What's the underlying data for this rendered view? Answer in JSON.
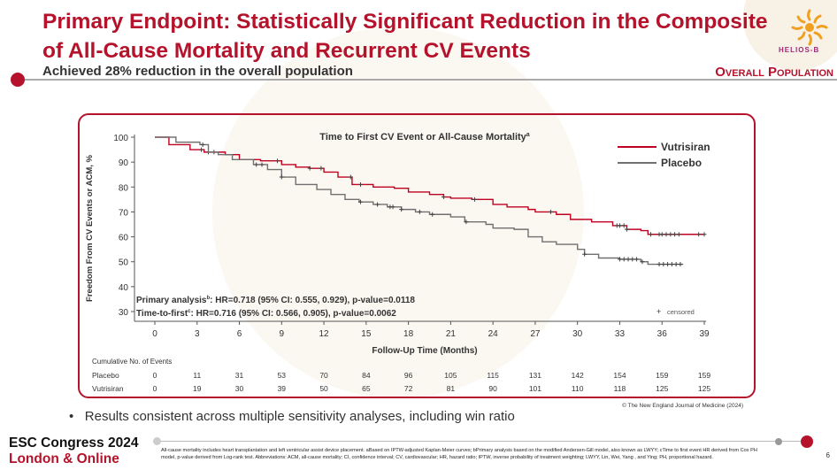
{
  "header": {
    "title": "Primary Endpoint: Statistically Significant Reduction in the Composite of All-Cause Mortality and Recurrent CV Events",
    "subtitle": "Achieved 28% reduction in the overall population",
    "population_label": "Overall Population",
    "logo_text": "HELIOS-B"
  },
  "colors": {
    "brand": "#b5122b",
    "vutrisiran": "#c00020",
    "placebo": "#707070"
  },
  "chart_data": {
    "type": "line",
    "subtype": "kaplan-meier",
    "title": "Time to First CV Event or All-Cause Mortality",
    "title_sup": "a",
    "xlabel": "Follow-Up Time (Months)",
    "ylabel": "Freedom From CV Events or ACM, %",
    "xlim": [
      0,
      39
    ],
    "ylim": [
      30,
      100
    ],
    "xticks": [
      0,
      3,
      6,
      9,
      12,
      15,
      18,
      21,
      24,
      27,
      30,
      33,
      36,
      39
    ],
    "yticks": [
      30,
      40,
      50,
      60,
      70,
      80,
      90,
      100
    ],
    "grid": false,
    "legend_position": "top-right",
    "censored_label": "censored",
    "series": [
      {
        "name": "Vutrisiran",
        "x": [
          0,
          0.5,
          1,
          2.5,
          3.5,
          5,
          6,
          7.5,
          9,
          10,
          11,
          12,
          13,
          14,
          15.5,
          17,
          18,
          19.5,
          20.5,
          21,
          22.5,
          24,
          25,
          26.5,
          27,
          28.5,
          29.5,
          31,
          32.5,
          33.5,
          34.5,
          35,
          39
        ],
        "y": [
          100,
          100,
          97,
          95,
          94,
          93,
          91,
          90.5,
          89,
          88,
          87.5,
          86,
          84,
          81,
          80,
          79.5,
          78,
          77,
          76,
          75.5,
          75,
          73,
          72,
          71,
          70,
          69,
          67,
          66,
          64.5,
          63,
          62.5,
          61,
          61
        ],
        "censored_x": [
          3.3,
          3.8,
          4.2,
          8.7,
          11,
          11.8,
          13.9,
          14.6,
          20.5,
          22.7,
          28.1,
          32.8,
          33,
          33.3,
          33.5,
          35.2,
          35.8,
          36,
          36.3,
          36.6,
          36.9,
          37.2,
          38.6,
          39
        ]
      },
      {
        "name": "Placebo",
        "x": [
          0,
          0.8,
          1.5,
          3.2,
          3.8,
          4.5,
          5.5,
          7,
          8,
          9,
          10,
          11.5,
          12.5,
          13.5,
          14.5,
          15.5,
          16.5,
          17.5,
          18.5,
          19.5,
          21,
          22,
          23.5,
          24,
          25.5,
          26.5,
          27.5,
          28.5,
          30,
          30.5,
          31.5,
          33,
          34.5,
          35,
          37.5
        ],
        "y": [
          100,
          100,
          98,
          97,
          94,
          93,
          91,
          89,
          87,
          84,
          81,
          79,
          77,
          75,
          74,
          73,
          72,
          71,
          70,
          69,
          68,
          66,
          65,
          63.5,
          63,
          60,
          58,
          57,
          55,
          53,
          51.5,
          51,
          50,
          49,
          49
        ],
        "censored_x": [
          3.4,
          7.2,
          7.6,
          9,
          14.6,
          15.8,
          16.7,
          16.9,
          17.5,
          18.8,
          19.7,
          22.1,
          30.5,
          33,
          33.3,
          33.6,
          33.9,
          34.2,
          34.6,
          35.8,
          36.1,
          36.4,
          36.7,
          37,
          37.3
        ]
      }
    ],
    "annotations": [
      {
        "label": "Primary analysis",
        "sup": "b",
        "text": ": HR=0.718 (95% CI: 0.555, 0.929), p-value=0.0118"
      },
      {
        "label": "Time-to-first",
        "sup": "c",
        "text": ": HR=0.716 (95% CI: 0.566, 0.905), p-value=0.0062"
      }
    ],
    "risk_table": {
      "title": "Cumulative No. of Events",
      "rows": [
        {
          "name": "Placebo",
          "values": [
            0,
            11,
            31,
            53,
            70,
            84,
            96,
            105,
            115,
            131,
            142,
            154,
            159,
            159
          ]
        },
        {
          "name": "Vutrisiran",
          "values": [
            0,
            19,
            30,
            39,
            50,
            65,
            72,
            81,
            90,
            101,
            110,
            118,
            125,
            125
          ]
        }
      ]
    }
  },
  "credit": "© The New England Journal of Medicine (2024)",
  "bullet": "Results consistent across multiple sensitivity analyses, including win ratio",
  "footer": {
    "congress": "ESC Congress 2024",
    "location": "London & Online",
    "footnote": "All-cause mortality includes heart transplantation and left ventricular assist device placement. aBased on IPTW-adjusted Kaplan-Meier curves; bPrimary analysis based on the modified Andersen-Gill model, also known as LWYY; cTime to first event HR derived from Cox PH model, p-value derived from Log-rank test. Abbreviations: ACM, all-cause mortality; CI, confidence interval; CV, cardiovascular; HR, hazard ratio; IPTW, inverse probability of treatment weighting; LWYY, Lin, Wei, Yang , and Ying; PH, proportional hazard.",
    "page_number": "6"
  }
}
